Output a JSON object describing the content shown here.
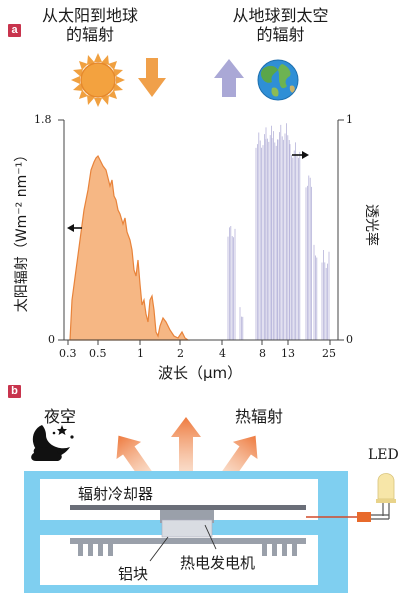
{
  "panel_a": {
    "tag": "a",
    "header_left_line1": "从太阳到地球",
    "header_left_line2": "的辐射",
    "header_right_line1": "从地球到太空",
    "header_right_line2": "的辐射",
    "y_left_label": "太阳辐射（Wm⁻² nm⁻¹）",
    "y_right_label": "透光率",
    "x_label": "波长（μm）",
    "y_left_ticks": [
      "1.8",
      "0"
    ],
    "y_right_ticks": [
      "1",
      "0"
    ],
    "x_ticks": [
      "0.3",
      "0.5",
      "1",
      "2",
      "4",
      "8",
      "13",
      "25"
    ]
  },
  "panel_b": {
    "tag": "b",
    "night_sky": "夜空",
    "thermal_radiation": "热辐射",
    "led": "LED",
    "radiative_cooler": "辐射冷却器",
    "aluminum_block": "铝块",
    "thermoelectric_generator": "热电发电机"
  },
  "colors": {
    "solar": "#e8833a",
    "solar_fill": "#f6b784",
    "transmittance": "#9c98cc",
    "arrow_up": "#a9a7d6",
    "tag": "#c8344d",
    "enclosure": "#7fcff0",
    "heat_arrow": "#f08a55"
  }
}
